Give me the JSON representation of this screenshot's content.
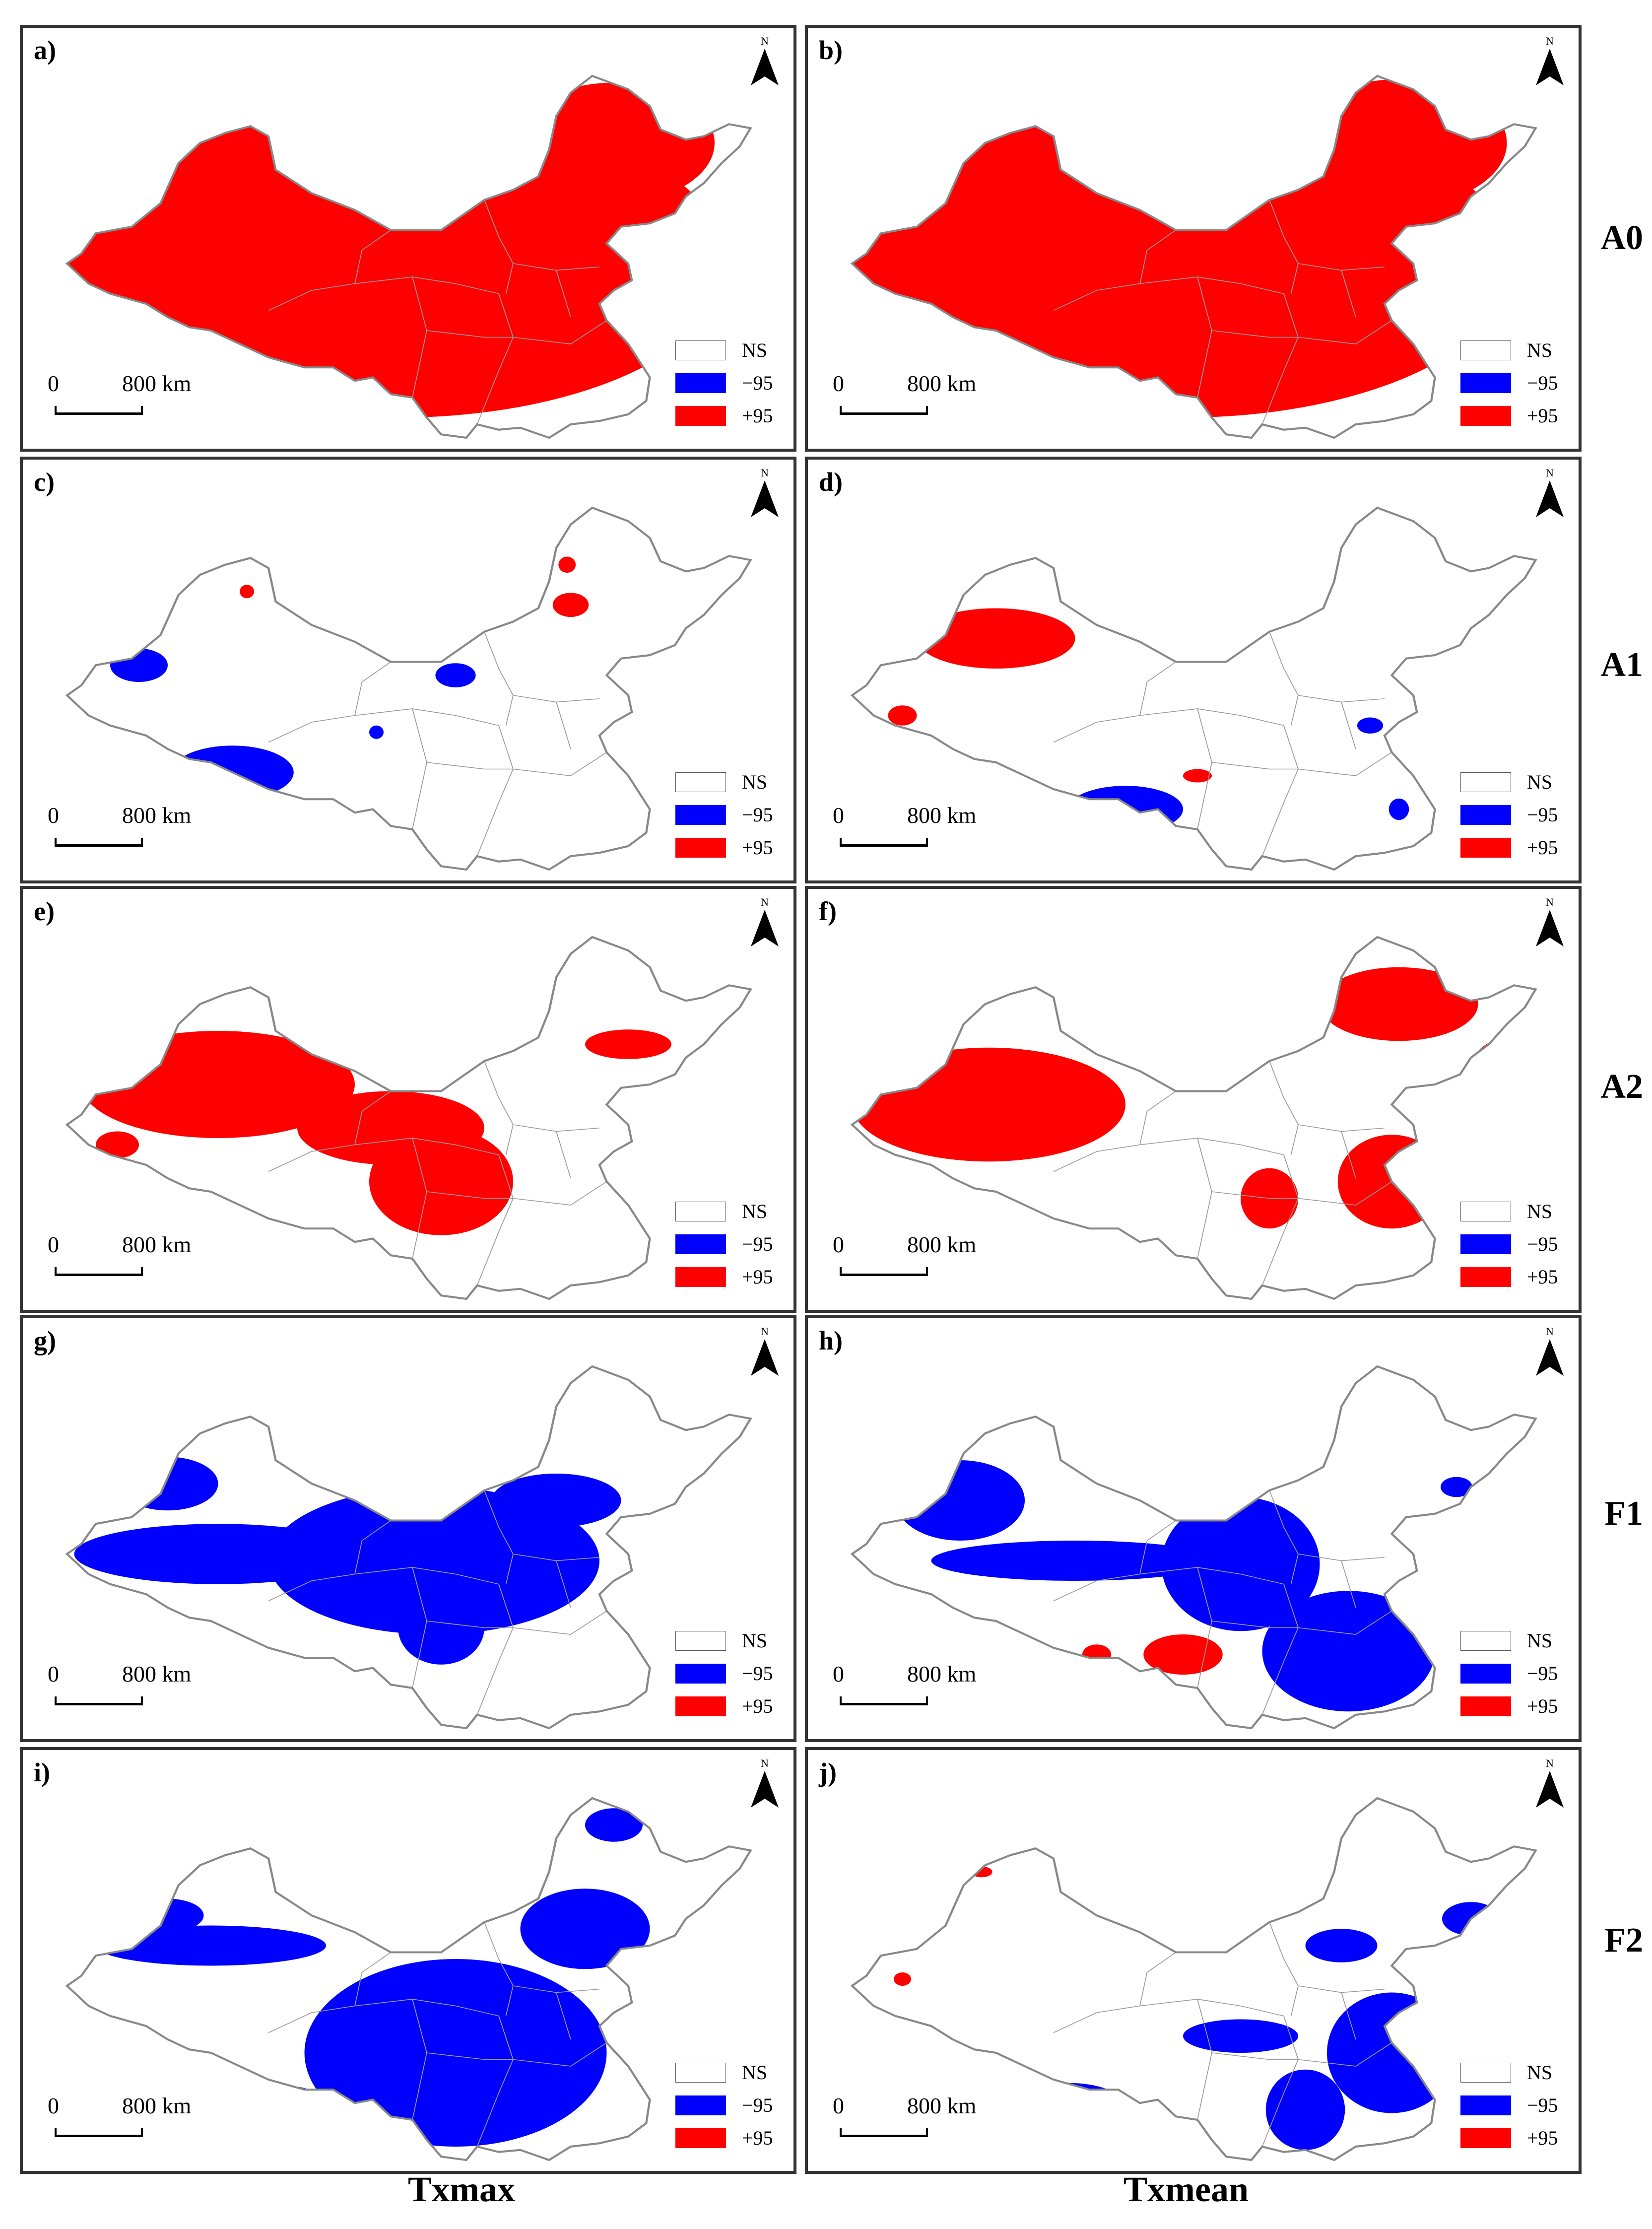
{
  "colors": {
    "positive": "#ff0000",
    "negative": "#0000ff",
    "ns": "#ffffff",
    "border": "#888888",
    "frame": "#333333"
  },
  "north_symbol": "N",
  "scale_bar": {
    "zero": "0",
    "distance": "800 km"
  },
  "legend": {
    "ns": "NS",
    "neg": "−95",
    "pos": "+95"
  },
  "columns": [
    "Txmax",
    "Txmean"
  ],
  "rows": [
    "A0",
    "A1",
    "A2",
    "F1",
    "F2"
  ],
  "panels": [
    {
      "letter": "a)",
      "row": "A0",
      "column": "Txmax",
      "dominant": "positive",
      "coverage": "most of country significant positive"
    },
    {
      "letter": "b)",
      "row": "A0",
      "column": "Txmean",
      "dominant": "positive",
      "coverage": "most of country significant positive"
    },
    {
      "letter": "c)",
      "row": "A1",
      "column": "Txmax",
      "dominant": "negative",
      "coverage": "scattered; negative cluster in southwest"
    },
    {
      "letter": "d)",
      "row": "A1",
      "column": "Txmean",
      "dominant": "mixed",
      "coverage": "positive in northwest; negative in south Tibet"
    },
    {
      "letter": "e)",
      "row": "A2",
      "column": "Txmax",
      "dominant": "positive",
      "coverage": "positive across north and center"
    },
    {
      "letter": "f)",
      "row": "A2",
      "column": "Txmean",
      "dominant": "positive",
      "coverage": "positive in northwest, northeast and east"
    },
    {
      "letter": "g)",
      "row": "F1",
      "column": "Txmax",
      "dominant": "negative",
      "coverage": "negative band across north and center"
    },
    {
      "letter": "h)",
      "row": "F1",
      "column": "Txmean",
      "dominant": "negative",
      "coverage": "negative in north and southeast"
    },
    {
      "letter": "i)",
      "row": "F2",
      "column": "Txmax",
      "dominant": "negative",
      "coverage": "negative in east-central"
    },
    {
      "letter": "j)",
      "row": "F2",
      "column": "Txmean",
      "dominant": "negative",
      "coverage": "scattered negative in south and northeast"
    }
  ]
}
